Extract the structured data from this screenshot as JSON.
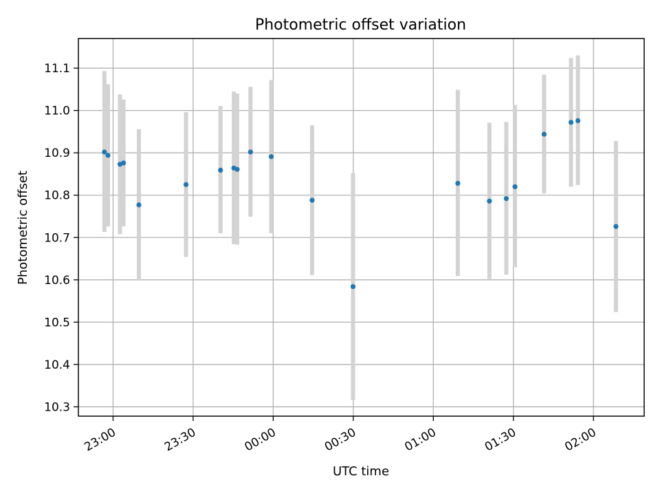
{
  "chart_data": {
    "type": "scatter",
    "title": "Photometric offset variation",
    "xlabel": "UTC time",
    "ylabel": "Photometric offset",
    "grid": true,
    "x_axis_format": "time HH:MM",
    "x_range": [
      "22:47",
      "02:19"
    ],
    "ylim": [
      10.278,
      11.17
    ],
    "x_ticks": [
      "23:00",
      "23:30",
      "00:00",
      "00:30",
      "01:00",
      "01:30",
      "02:00"
    ],
    "y_ticks": [
      10.3,
      10.4,
      10.5,
      10.6,
      10.7,
      10.8,
      10.9,
      11.0,
      11.1
    ],
    "y_tick_labels": [
      "10.3",
      "10.4",
      "10.5",
      "10.6",
      "10.7",
      "10.8",
      "10.9",
      "11.0",
      "11.1"
    ],
    "series": [
      {
        "color": "#1f77b4",
        "errorbar_color": "#d3d3d3",
        "points": [
          {
            "x": "22:56:45",
            "y": 10.902,
            "ylow": 10.713,
            "yhigh": 11.093
          },
          {
            "x": "22:58:05",
            "y": 10.894,
            "ylow": 10.726,
            "yhigh": 11.062
          },
          {
            "x": "23:02:35",
            "y": 10.873,
            "ylow": 10.708,
            "yhigh": 11.038
          },
          {
            "x": "23:03:55",
            "y": 10.876,
            "ylow": 10.726,
            "yhigh": 11.026
          },
          {
            "x": "23:09:40",
            "y": 10.777,
            "ylow": 10.598,
            "yhigh": 10.956
          },
          {
            "x": "23:27:20",
            "y": 10.825,
            "ylow": 10.654,
            "yhigh": 10.996
          },
          {
            "x": "23:40:15",
            "y": 10.859,
            "ylow": 10.71,
            "yhigh": 11.011
          },
          {
            "x": "23:45:15",
            "y": 10.864,
            "ylow": 10.684,
            "yhigh": 11.045
          },
          {
            "x": "23:46:30",
            "y": 10.861,
            "ylow": 10.683,
            "yhigh": 11.04
          },
          {
            "x": "23:51:30",
            "y": 10.902,
            "ylow": 10.749,
            "yhigh": 11.056
          },
          {
            "x": "23:59:15",
            "y": 10.891,
            "ylow": 10.71,
            "yhigh": 11.072
          },
          {
            "x": "00:14:35",
            "y": 10.788,
            "ylow": 10.611,
            "yhigh": 10.965
          },
          {
            "x": "00:29:55",
            "y": 10.584,
            "ylow": 10.316,
            "yhigh": 10.852
          },
          {
            "x": "01:09:10",
            "y": 10.828,
            "ylow": 10.609,
            "yhigh": 11.049
          },
          {
            "x": "01:21:00",
            "y": 10.786,
            "ylow": 10.602,
            "yhigh": 10.971
          },
          {
            "x": "01:27:20",
            "y": 10.792,
            "ylow": 10.612,
            "yhigh": 10.973
          },
          {
            "x": "01:30:35",
            "y": 10.82,
            "ylow": 10.63,
            "yhigh": 11.013
          },
          {
            "x": "01:41:30",
            "y": 10.944,
            "ylow": 10.804,
            "yhigh": 11.085
          },
          {
            "x": "01:51:35",
            "y": 10.972,
            "ylow": 10.82,
            "yhigh": 11.124
          },
          {
            "x": "01:54:10",
            "y": 10.976,
            "ylow": 10.824,
            "yhigh": 11.13
          },
          {
            "x": "02:08:25",
            "y": 10.726,
            "ylow": 10.524,
            "yhigh": 10.928
          }
        ]
      }
    ]
  }
}
